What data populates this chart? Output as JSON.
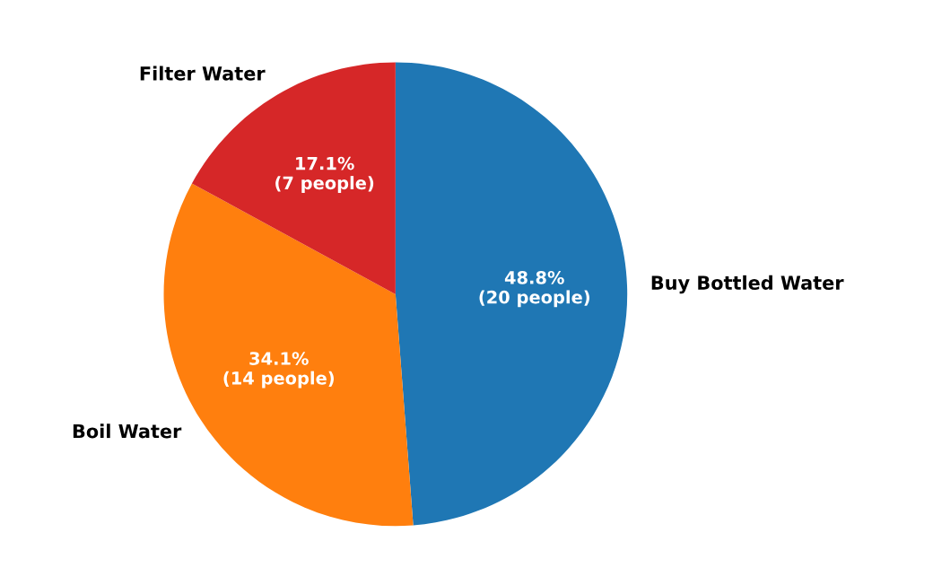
{
  "chart_data": {
    "type": "pie",
    "categories": [
      "Buy Bottled Water",
      "Boil Water",
      "Filter Water"
    ],
    "values": [
      20,
      14,
      7
    ],
    "colors": [
      "#1f77b4",
      "#ff7f0e",
      "#d62728"
    ],
    "value_labels": [
      "48.8%\n(20 people)",
      "34.1%\n(14 people)",
      "17.1%\n(7 people)"
    ],
    "legend": false
  }
}
